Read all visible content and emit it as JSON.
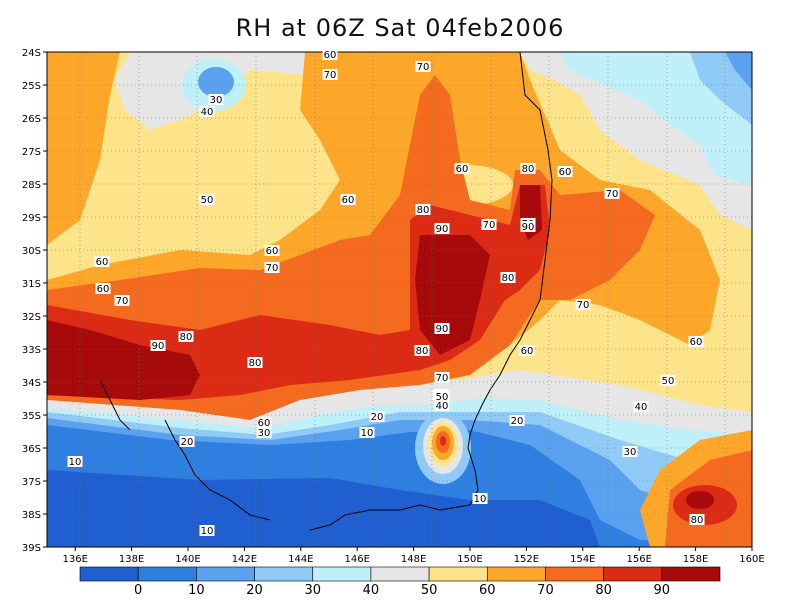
{
  "title": "RH at 06Z Sat 04feb2006",
  "y_ticks": [
    "24S",
    "25S",
    "26S",
    "27S",
    "28S",
    "29S",
    "30S",
    "31S",
    "32S",
    "33S",
    "34S",
    "35S",
    "36S",
    "37S",
    "38S",
    "39S"
  ],
  "x_ticks": [
    "136E",
    "138E",
    "140E",
    "142E",
    "144E",
    "146E",
    "148E",
    "150E",
    "152E",
    "154E",
    "156E",
    "158E",
    "160E"
  ],
  "colorbar": {
    "labels": [
      "0",
      "10",
      "20",
      "30",
      "40",
      "50",
      "60",
      "70",
      "80",
      "90"
    ],
    "colors": [
      "#1f5fcf",
      "#2f7fe0",
      "#5aa2f0",
      "#8fcbf6",
      "#bfeff8",
      "#e6e6e6",
      "#fde38a",
      "#fca72a",
      "#f46a1e",
      "#dc2b14",
      "#a60a0a"
    ]
  },
  "contour_labels": [
    {
      "text": "50"
    },
    {
      "text": "60"
    },
    {
      "text": "70"
    },
    {
      "text": "30"
    },
    {
      "text": "40"
    },
    {
      "text": "60"
    },
    {
      "text": "80"
    },
    {
      "text": "60"
    },
    {
      "text": "50"
    },
    {
      "text": "60"
    },
    {
      "text": "70"
    },
    {
      "text": "80"
    },
    {
      "text": "90"
    },
    {
      "text": "70"
    },
    {
      "text": "90"
    },
    {
      "text": "60"
    },
    {
      "text": "70"
    },
    {
      "text": "60"
    },
    {
      "text": "70"
    },
    {
      "text": "80"
    },
    {
      "text": "70"
    },
    {
      "text": "90"
    },
    {
      "text": "80"
    },
    {
      "text": "80"
    },
    {
      "text": "90"
    },
    {
      "text": "80"
    },
    {
      "text": "60"
    },
    {
      "text": "60"
    },
    {
      "text": "70"
    },
    {
      "text": "50"
    },
    {
      "text": "40"
    },
    {
      "text": "70"
    },
    {
      "text": "60"
    },
    {
      "text": "50"
    },
    {
      "text": "20"
    },
    {
      "text": "10"
    },
    {
      "text": "20"
    },
    {
      "text": "10"
    },
    {
      "text": "70"
    },
    {
      "text": "30"
    },
    {
      "text": "10"
    },
    {
      "text": "20"
    },
    {
      "text": "30"
    },
    {
      "text": "10"
    },
    {
      "text": "80"
    },
    {
      "text": "60"
    },
    {
      "text": "40"
    }
  ]
}
